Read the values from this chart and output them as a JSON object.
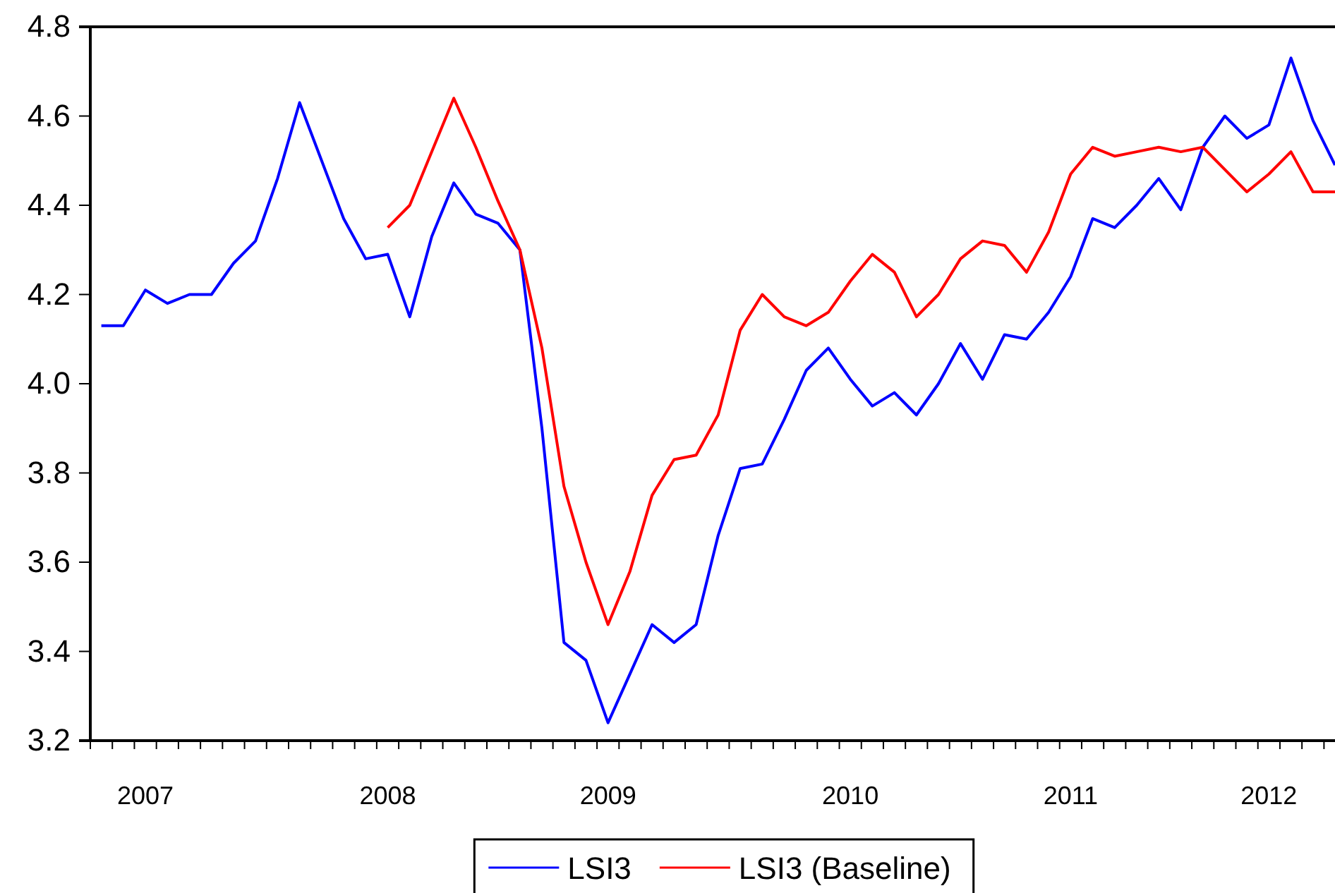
{
  "chart_data": {
    "type": "line",
    "categories": [
      null,
      null,
      "2007",
      null,
      null,
      null,
      null,
      null,
      null,
      null,
      null,
      null,
      null,
      "2008",
      null,
      null,
      null,
      null,
      null,
      null,
      null,
      null,
      null,
      "2009",
      null,
      null,
      null,
      null,
      null,
      null,
      null,
      null,
      null,
      null,
      "2010",
      null,
      null,
      null,
      null,
      null,
      null,
      null,
      null,
      null,
      "2011",
      null,
      null,
      null,
      null,
      null,
      null,
      null,
      null,
      "2012",
      null,
      null,
      null
    ],
    "series": [
      {
        "name": "LSI3",
        "color": "#0000ff",
        "values": [
          4.13,
          4.13,
          4.21,
          4.18,
          4.2,
          4.2,
          4.27,
          4.32,
          4.46,
          4.63,
          4.5,
          4.37,
          4.28,
          4.29,
          4.15,
          4.33,
          4.45,
          4.38,
          4.36,
          4.3,
          3.9,
          3.42,
          3.38,
          3.24,
          3.35,
          3.46,
          3.42,
          3.46,
          3.66,
          3.81,
          3.82,
          3.92,
          4.03,
          4.08,
          4.01,
          3.95,
          3.98,
          3.93,
          4.0,
          4.09,
          4.01,
          4.11,
          4.1,
          4.16,
          4.24,
          4.37,
          4.35,
          4.4,
          4.46,
          4.39,
          4.53,
          4.6,
          4.55,
          4.58,
          4.73,
          4.59,
          4.49
        ]
      },
      {
        "name": "LSI3 (Baseline)",
        "color": "#ff0000",
        "values": [
          null,
          null,
          null,
          null,
          null,
          null,
          null,
          null,
          null,
          null,
          null,
          null,
          null,
          4.35,
          4.4,
          4.52,
          4.64,
          4.53,
          4.41,
          4.3,
          4.08,
          3.77,
          3.6,
          3.46,
          3.58,
          3.75,
          3.83,
          3.84,
          3.93,
          4.12,
          4.2,
          4.15,
          4.13,
          4.16,
          4.23,
          4.29,
          4.25,
          4.15,
          4.2,
          4.28,
          4.32,
          4.31,
          4.25,
          4.34,
          4.47,
          4.53,
          4.51,
          4.52,
          4.53,
          4.52,
          4.53,
          4.48,
          4.43,
          4.47,
          4.52,
          4.43,
          4.43
        ]
      }
    ],
    "ylim": [
      3.2,
      4.8
    ],
    "yticks": [
      3.2,
      3.4,
      3.6,
      3.8,
      {
        "value": 4,
        "label": "4.0"
      },
      4.2,
      4.4,
      4.6,
      4.8
    ],
    "legend": "bottom",
    "grid": false
  }
}
